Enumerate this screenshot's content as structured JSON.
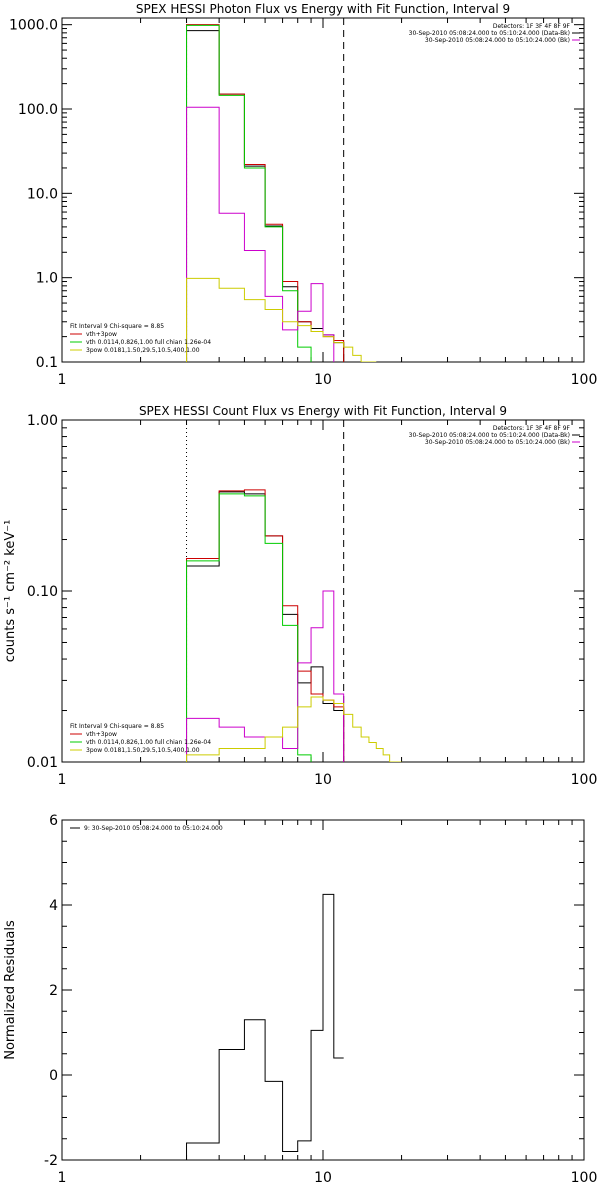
{
  "colors": {
    "axes": "#000000",
    "black": "#000000",
    "red": "#cc0000",
    "green": "#00cc00",
    "magenta": "#cc00cc",
    "yellow": "#cccc00"
  },
  "chart_data": [
    {
      "type": "line",
      "step": true,
      "title": "SPEX HESSI Photon Flux vs Energy with Fit Function, Interval 9",
      "xscale": "log",
      "yscale": "log",
      "xlim": [
        1,
        100
      ],
      "ylim": [
        0.1,
        1200
      ],
      "xticks": [
        1,
        10,
        100
      ],
      "xtick_labels": [
        "1",
        "10",
        "100"
      ],
      "yticks": [
        0.1,
        1,
        10,
        100,
        1000
      ],
      "ytick_labels": [
        "0.1",
        "1.0",
        "10.0",
        "100.0",
        "1000.0"
      ],
      "ylabel": "",
      "edges": [
        3,
        4,
        5,
        6,
        7,
        8,
        9,
        10,
        11,
        12,
        13,
        14,
        15,
        16
      ],
      "vlines": [
        {
          "x": 3,
          "style": "dotted"
        },
        {
          "x": 12,
          "style": "dashed"
        }
      ],
      "legend_top": [
        "Detectors: 1F 3F 4F 8F 9F",
        "30-Sep-2010 05:08:24.000 to 05:10:24.000 (Data-Bk)",
        "30-Sep-2010 05:08:24.000 to 05:10:24.000 (Bk)"
      ],
      "legend_top_colors": [
        "#000000",
        "#000000",
        "#cc00cc"
      ],
      "legend_bottom": [
        "Fit Interval 9   Chi-square = 8.85",
        "vth+3pow",
        "vth 0.0114,0.826,1.00  full chian 1.26e-04",
        "3pow 0.0181,1.50,29.5,10.5,400,1.00"
      ],
      "legend_bottom_colors": [
        "#000000",
        "#cc0000",
        "#00cc00",
        "#cccc00"
      ],
      "series": [
        {
          "color": "#000000",
          "values": [
            850,
            150,
            21,
            4.1,
            0.78,
            0.3,
            0.25,
            0.21,
            0.17,
            null,
            null,
            null,
            null
          ]
        },
        {
          "color": "#cc0000",
          "values": [
            1000,
            150,
            22,
            4.3,
            0.9,
            0.3,
            0.23,
            0.2,
            0.18,
            null,
            null,
            null,
            null
          ]
        },
        {
          "color": "#00cc00",
          "values": [
            980,
            145,
            20,
            4.0,
            0.7,
            0.15,
            null,
            null,
            null,
            null,
            null,
            null,
            null
          ]
        },
        {
          "color": "#cc00cc",
          "values": [
            105,
            5.8,
            2.1,
            0.6,
            0.24,
            0.4,
            0.85,
            0.21,
            null,
            null,
            null,
            null,
            null
          ]
        },
        {
          "color": "#cccc00",
          "values": [
            0.98,
            0.75,
            0.55,
            0.42,
            0.3,
            0.27,
            0.23,
            0.2,
            0.17,
            0.15,
            0.12,
            0.1,
            0.09
          ]
        }
      ]
    },
    {
      "type": "line",
      "step": true,
      "title": "SPEX HESSI Count Flux vs Energy with Fit Function, Interval 9",
      "xscale": "log",
      "yscale": "log",
      "xlim": [
        1,
        100
      ],
      "ylim": [
        0.01,
        1.0
      ],
      "xticks": [
        1,
        10,
        100
      ],
      "xtick_labels": [
        "1",
        "10",
        "100"
      ],
      "yticks": [
        0.01,
        0.1,
        1.0
      ],
      "ytick_labels": [
        "0.01",
        "0.10",
        "1.00"
      ],
      "ylabel": "counts s⁻¹ cm⁻² keV⁻¹",
      "edges": [
        3,
        4,
        5,
        6,
        7,
        8,
        9,
        10,
        11,
        12,
        13,
        14,
        15,
        16,
        17,
        18,
        19,
        20
      ],
      "vlines": [
        {
          "x": 3,
          "style": "dotted"
        },
        {
          "x": 12,
          "style": "dashed"
        }
      ],
      "legend_top": [
        "Detectors: 1F 3F 4F 8F 9F",
        "30-Sep-2010 05:08:24.000 to 05:10:24.000 (Data-Bk)",
        "30-Sep-2010 05:08:24.000 to 05:10:24.000 (Bk)"
      ],
      "legend_top_colors": [
        "#000000",
        "#000000",
        "#cc00cc"
      ],
      "legend_bottom": [
        "Fit Interval 9   Chi-square = 8.85",
        "vth+3pow",
        "vth 0.0114,0.826,1.00  full chian 1.26e-04",
        "3pow 0.0181,1.50,29.5,10.5,400,1.00"
      ],
      "legend_bottom_colors": [
        "#000000",
        "#cc0000",
        "#00cc00",
        "#cccc00"
      ],
      "series": [
        {
          "color": "#000000",
          "values": [
            0.14,
            0.38,
            0.37,
            0.21,
            0.073,
            0.029,
            0.036,
            0.022,
            0.02,
            null,
            null,
            null,
            null,
            null,
            null,
            null,
            null
          ]
        },
        {
          "color": "#cc0000",
          "values": [
            0.155,
            0.385,
            0.39,
            0.21,
            0.082,
            0.034,
            0.025,
            0.023,
            0.021,
            null,
            null,
            null,
            null,
            null,
            null,
            null,
            null
          ]
        },
        {
          "color": "#00cc00",
          "values": [
            0.15,
            0.37,
            0.36,
            0.19,
            0.063,
            0.011,
            null,
            null,
            null,
            null,
            null,
            null,
            null,
            null,
            null,
            null,
            null
          ]
        },
        {
          "color": "#cc00cc",
          "values": [
            0.018,
            0.016,
            0.014,
            0.014,
            0.012,
            0.038,
            0.061,
            0.1,
            0.025,
            null,
            null,
            null,
            null,
            null,
            null,
            null,
            null
          ]
        },
        {
          "color": "#cccc00",
          "values": [
            0.011,
            0.012,
            0.012,
            0.014,
            0.016,
            0.021,
            0.024,
            0.023,
            0.022,
            0.019,
            0.016,
            0.014,
            0.013,
            0.012,
            0.011,
            0.01,
            0.01
          ]
        }
      ]
    },
    {
      "type": "line",
      "step": true,
      "title": "",
      "xscale": "log",
      "yscale": "linear",
      "xlim": [
        1,
        100
      ],
      "ylim": [
        -2,
        6
      ],
      "xticks": [
        1,
        10,
        100
      ],
      "xtick_labels": [
        "1",
        "10",
        "100"
      ],
      "yticks": [
        -2,
        0,
        2,
        4,
        6
      ],
      "ytick_labels": [
        "-2",
        "0",
        "2",
        "4",
        "6"
      ],
      "ylabel": "Normalized Residuals",
      "edges": [
        3,
        4,
        5,
        6,
        7,
        8,
        9,
        10,
        11,
        12
      ],
      "vlines": [],
      "legend_top": [
        "9: 30-Sep-2010 05:08:24.000 to 05:10:24.000"
      ],
      "legend_top_colors": [
        "#000000"
      ],
      "legend_bottom": [],
      "legend_bottom_colors": [],
      "series": [
        {
          "color": "#000000",
          "values": [
            -1.6,
            0.6,
            1.3,
            -0.15,
            -1.8,
            -1.55,
            1.05,
            4.25,
            0.4
          ]
        }
      ]
    }
  ]
}
